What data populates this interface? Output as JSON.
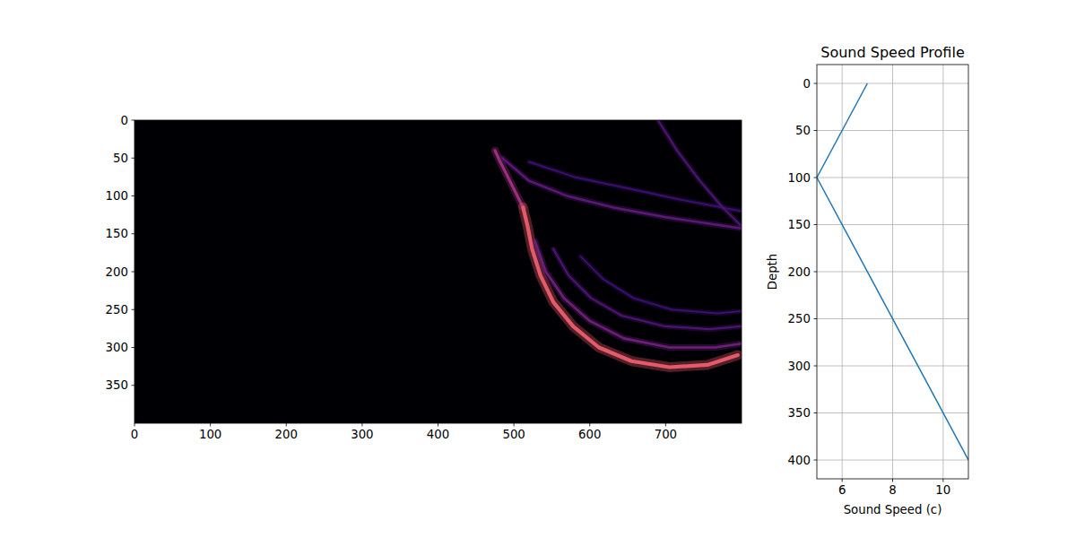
{
  "chart_data": [
    {
      "type": "image",
      "xlim": [
        0,
        800
      ],
      "ylim": [
        400,
        0
      ],
      "xticks": [
        0,
        100,
        200,
        300,
        400,
        500,
        600,
        700
      ],
      "yticks": [
        0,
        50,
        100,
        150,
        200,
        250,
        300,
        350
      ],
      "curves": [
        {
          "x": [
            475,
            482,
            492,
            502,
            512
          ],
          "y": [
            40,
            55,
            75,
            95,
            115
          ],
          "amplitude": 0.55
        },
        {
          "x": [
            512,
            518,
            524,
            535,
            552,
            578,
            612,
            655,
            705,
            755,
            795
          ],
          "y": [
            115,
            140,
            170,
            205,
            240,
            272,
            300,
            318,
            326,
            323,
            310
          ],
          "amplitude": 0.8
        },
        {
          "x": [
            528,
            542,
            566,
            600,
            645,
            705,
            765,
            800
          ],
          "y": [
            160,
            200,
            235,
            265,
            288,
            300,
            300,
            295
          ],
          "amplitude": 0.4
        },
        {
          "x": [
            552,
            572,
            602,
            642,
            698,
            758,
            800
          ],
          "y": [
            170,
            205,
            235,
            258,
            272,
            276,
            272
          ],
          "amplitude": 0.3
        },
        {
          "x": [
            588,
            618,
            658,
            708,
            768,
            800
          ],
          "y": [
            180,
            210,
            235,
            250,
            255,
            252
          ],
          "amplitude": 0.25
        },
        {
          "x": [
            485,
            520,
            570,
            630,
            700,
            760,
            800
          ],
          "y": [
            50,
            80,
            100,
            115,
            128,
            137,
            143
          ],
          "amplitude": 0.35
        },
        {
          "x": [
            520,
            580,
            650,
            720,
            800
          ],
          "y": [
            55,
            75,
            90,
            105,
            120
          ],
          "amplitude": 0.25
        },
        {
          "x": [
            690,
            715,
            745,
            775,
            800
          ],
          "y": [
            0,
            40,
            80,
            115,
            140
          ],
          "amplitude": 0.3
        }
      ]
    },
    {
      "type": "line",
      "title": "Sound Speed Profile",
      "x_label": "Sound Speed (c)",
      "y_label": "Depth",
      "xlim": [
        5,
        11
      ],
      "ylim": [
        420,
        -20
      ],
      "xticks": [
        6,
        8,
        10
      ],
      "yticks": [
        0,
        50,
        100,
        150,
        200,
        250,
        300,
        350,
        400
      ],
      "grid": true,
      "x": [
        7,
        5,
        11
      ],
      "series": [
        {
          "color": "#1f77b4",
          "values": [
            0,
            100,
            400
          ]
        }
      ]
    }
  ]
}
